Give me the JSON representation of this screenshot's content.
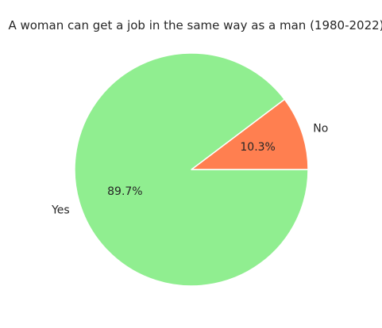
{
  "chart_data": {
    "type": "pie",
    "title": "A woman can get a job in the same way as a man (1980-2022)",
    "labels": [
      "No",
      "Yes"
    ],
    "values": [
      10.3,
      89.7
    ],
    "percent_labels": [
      "10.3%",
      "89.7%"
    ],
    "colors": [
      "#ff7f50",
      "#90ee90"
    ],
    "start_angle_deg": 0,
    "direction": "counterclockwise",
    "legend": "none"
  }
}
